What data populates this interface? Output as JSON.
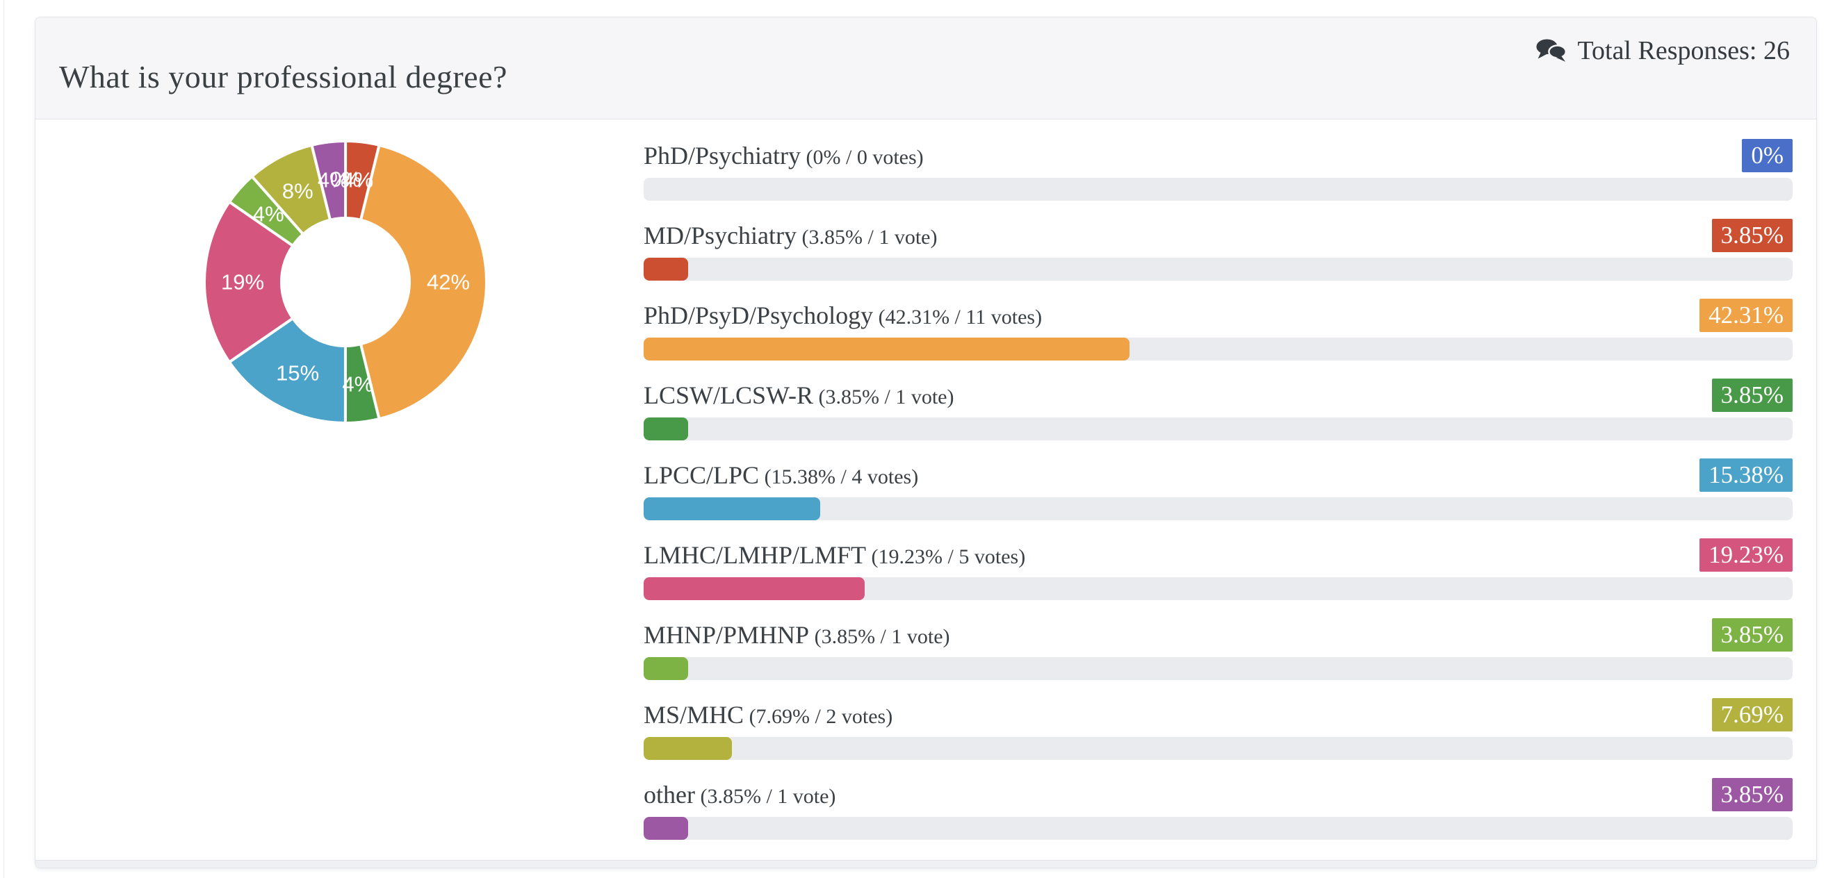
{
  "header": {
    "title": "What is your professional degree?",
    "total_responses_text": "Total Responses: 26"
  },
  "chart_data": {
    "type": "donut",
    "title": "What is your professional degree?",
    "total_responses": 26,
    "legend_position": "right-as-bars",
    "categories": [
      "PhD/Psychiatry",
      "MD/Psychiatry",
      "PhD/PsyD/Psychology",
      "LCSW/LCSW-R",
      "LPCC/LPC",
      "LMHC/LMHP/LMFT",
      "MHNP/PMHNP",
      "MS/MHC",
      "other"
    ],
    "values": [
      0,
      3.85,
      42.31,
      3.85,
      15.38,
      19.23,
      3.85,
      7.69,
      3.85
    ],
    "votes": [
      0,
      1,
      11,
      1,
      4,
      5,
      1,
      2,
      1
    ],
    "colors": [
      "#4a6fc9",
      "#cd4f32",
      "#f0a346",
      "#489a48",
      "#4ba3c9",
      "#d4567f",
      "#7cb344",
      "#b3b23e",
      "#9c58a3"
    ],
    "slice_labels": [
      "0%",
      "4%",
      "42%",
      "4%",
      "15%",
      "19%",
      "4%",
      "8%",
      "4%"
    ],
    "badge_labels": [
      "0%",
      "3.85%",
      "42.31%",
      "3.85%",
      "15.38%",
      "19.23%",
      "3.85%",
      "7.69%",
      "3.85%"
    ],
    "row_subtexts": [
      "(0% / 0 votes)",
      "(3.85% / 1 vote)",
      "(42.31% / 11 votes)",
      "(3.85% / 1 vote)",
      "(15.38% / 4 votes)",
      "(19.23% / 5 votes)",
      "(3.85% / 1 vote)",
      "(7.69% / 2 votes)",
      "(3.85% / 1 vote)"
    ],
    "track_color": "#e9ebee",
    "donut_start_angle_deg": 0,
    "donut_direction": "clockwise"
  }
}
